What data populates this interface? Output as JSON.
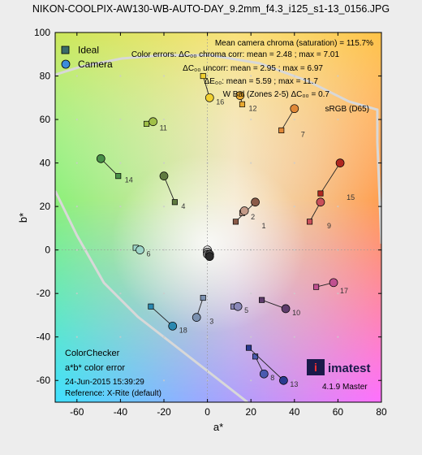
{
  "page_title": "NIKON-COOLPIX-AW130-WB-AUTO-DAY_9.2mm_f4.3_i125_s1-13_0156.JPG",
  "legend": {
    "ideal": "Ideal",
    "camera": "Camera",
    "position": "top-left"
  },
  "stats": [
    "Mean camera chroma (saturation) = 115.7%",
    "Color errors: ΔC₀₀ chroma corr: mean = 2.48 ; max = 7.01",
    "ΔC₀₀ uncorr: mean = 2.95 ; max = 6.97",
    "ΔE₀₀: mean = 5.59 ; max = 11.7",
    "W Bal (Zones 2-5)  ΔC₀₀ = 0.7",
    "sRGB (D65)"
  ],
  "footer": [
    "ColorChecker",
    "a*b* color error",
    "24-Jun-2015 15:39:29",
    "Reference: X-Rite (default)"
  ],
  "logo": {
    "text": "imatest",
    "version": "4.1.9 Master"
  },
  "chart_data": {
    "type": "scatter",
    "xlabel": "a*",
    "ylabel": "b*",
    "xlim": [
      -70,
      80
    ],
    "ylim": [
      -70,
      100
    ],
    "xticks": [
      -60,
      -40,
      -20,
      0,
      20,
      40,
      60,
      80
    ],
    "yticks": [
      -60,
      -40,
      -20,
      0,
      20,
      40,
      60,
      80,
      100
    ],
    "grid": "dotted",
    "series": [
      {
        "name": "Ideal",
        "marker": "square"
      },
      {
        "name": "Camera",
        "marker": "circle"
      }
    ],
    "patches": [
      {
        "id": "1",
        "ideal": [
          13,
          13
        ],
        "camera": [
          22,
          22
        ],
        "color": "#8a5a48"
      },
      {
        "id": "2",
        "ideal": [
          16,
          17
        ],
        "camera": [
          17,
          18
        ],
        "color": "#c39a88"
      },
      {
        "id": "3",
        "ideal": [
          -2,
          -22
        ],
        "camera": [
          -5,
          -31
        ],
        "color": "#7a90b0"
      },
      {
        "id": "4",
        "ideal": [
          -15,
          22
        ],
        "camera": [
          -20,
          34
        ],
        "color": "#5f7a40"
      },
      {
        "id": "5",
        "ideal": [
          12,
          -26
        ],
        "camera": [
          14,
          -26
        ],
        "color": "#8a88b8"
      },
      {
        "id": "6",
        "ideal": [
          -33,
          1
        ],
        "camera": [
          -31,
          0
        ],
        "color": "#9cd4c8"
      },
      {
        "id": "7",
        "ideal": [
          34,
          55
        ],
        "camera": [
          40,
          65
        ],
        "color": "#e08838"
      },
      {
        "id": "8",
        "ideal": [
          22,
          -49
        ],
        "camera": [
          26,
          -57
        ],
        "color": "#4a5ab0"
      },
      {
        "id": "9",
        "ideal": [
          47,
          13
        ],
        "camera": [
          52,
          22
        ],
        "color": "#c8505a"
      },
      {
        "id": "10",
        "ideal": [
          25,
          -23
        ],
        "camera": [
          36,
          -27
        ],
        "color": "#5e3c6c"
      },
      {
        "id": "11",
        "ideal": [
          -28,
          58
        ],
        "camera": [
          -25,
          59
        ],
        "color": "#a0c048"
      },
      {
        "id": "12",
        "ideal": [
          16,
          67
        ],
        "camera": [
          15,
          71
        ],
        "color": "#e8a830"
      },
      {
        "id": "13",
        "ideal": [
          19,
          -45
        ],
        "camera": [
          35,
          -60
        ],
        "color": "#2a3a90"
      },
      {
        "id": "14",
        "ideal": [
          -41,
          34
        ],
        "camera": [
          -49,
          42
        ],
        "color": "#489048"
      },
      {
        "id": "15",
        "ideal": [
          52,
          26
        ],
        "camera": [
          61,
          40
        ],
        "color": "#b02820"
      },
      {
        "id": "16",
        "ideal": [
          -2,
          80
        ],
        "camera": [
          1,
          70
        ],
        "color": "#f0d030"
      },
      {
        "id": "17",
        "ideal": [
          50,
          -17
        ],
        "camera": [
          58,
          -15
        ],
        "color": "#c05090"
      },
      {
        "id": "18",
        "ideal": [
          -26,
          -26
        ],
        "camera": [
          -16,
          -35
        ],
        "color": "#2a88b0"
      },
      {
        "id": "",
        "ideal": [
          0,
          0
        ],
        "camera": [
          0,
          0
        ],
        "color": "#f0f0f0"
      },
      {
        "id": "",
        "ideal": [
          0,
          -1
        ],
        "camera": [
          0,
          -1
        ],
        "color": "#c8c8c8"
      },
      {
        "id": "",
        "ideal": [
          0,
          -1
        ],
        "camera": [
          0,
          -1
        ],
        "color": "#a0a0a0"
      },
      {
        "id": "",
        "ideal": [
          0,
          -2
        ],
        "camera": [
          0,
          -2
        ],
        "color": "#787878"
      },
      {
        "id": "",
        "ideal": [
          1,
          -2
        ],
        "camera": [
          1,
          -2
        ],
        "color": "#505050"
      },
      {
        "id": "",
        "ideal": [
          1,
          -3
        ],
        "camera": [
          1,
          -3
        ],
        "color": "#2a2a2a"
      }
    ]
  }
}
